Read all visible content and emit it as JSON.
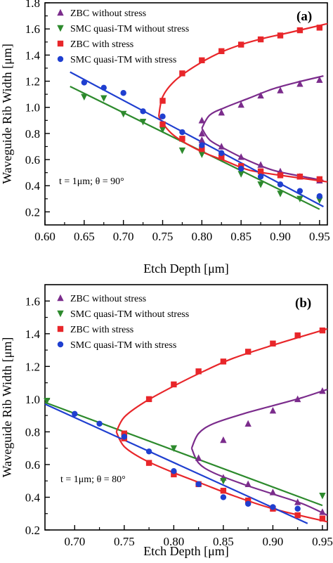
{
  "chart_data": [
    {
      "type": "scatter",
      "panel_label": "(a)",
      "annotation": "t = 1μm; θ = 90°",
      "xlabel": "Etch Depth [μm]",
      "ylabel": "Waveguide Rib Width [μm]",
      "xlim": [
        0.6,
        0.96
      ],
      "ylim": [
        0.1,
        1.8
      ],
      "xticks": [
        0.6,
        0.65,
        0.7,
        0.75,
        0.8,
        0.85,
        0.9,
        0.95
      ],
      "xtick_labels": [
        "0.60",
        "0.65",
        "0.70",
        "0.75",
        "0.80",
        "0.85",
        "0.90",
        "0.95"
      ],
      "yticks": [
        0.2,
        0.4,
        0.6,
        0.8,
        1.0,
        1.2,
        1.4,
        1.6,
        1.8
      ],
      "ytick_labels": [
        "0.2",
        "0.4",
        "0.6",
        "0.8",
        "1.0",
        "1.2",
        "1.4",
        "1.6",
        "1.8"
      ],
      "legend_position": "top-left",
      "series": [
        {
          "name": "ZBC without stress",
          "color": "#7b2c8c",
          "marker": "triangle-up",
          "points": [
            [
              0.8,
              0.9
            ],
            [
              0.8,
              0.8
            ],
            [
              0.825,
              0.96
            ],
            [
              0.85,
              1.02
            ],
            [
              0.875,
              1.09
            ],
            [
              0.9,
              1.13
            ],
            [
              0.925,
              1.18
            ],
            [
              0.95,
              1.21
            ],
            [
              0.8,
              0.75
            ],
            [
              0.825,
              0.7
            ],
            [
              0.85,
              0.62
            ],
            [
              0.875,
              0.56
            ],
            [
              0.9,
              0.51
            ],
            [
              0.925,
              0.47
            ],
            [
              0.95,
              0.44
            ]
          ],
          "curves": [
            [
              [
                0.8,
                0.84
              ],
              [
                0.81,
                0.94
              ],
              [
                0.83,
                1.0
              ],
              [
                0.86,
                1.07
              ],
              [
                0.89,
                1.14
              ],
              [
                0.92,
                1.19
              ],
              [
                0.955,
                1.24
              ]
            ],
            [
              [
                0.8,
                0.84
              ],
              [
                0.81,
                0.75
              ],
              [
                0.83,
                0.68
              ],
              [
                0.86,
                0.59
              ],
              [
                0.89,
                0.52
              ],
              [
                0.92,
                0.48
              ],
              [
                0.955,
                0.44
              ]
            ]
          ]
        },
        {
          "name": "SMC quasi-TM without stress",
          "color": "#2d8a2d",
          "marker": "triangle-down",
          "points": [
            [
              0.65,
              1.08
            ],
            [
              0.675,
              1.07
            ],
            [
              0.7,
              0.95
            ],
            [
              0.725,
              0.89
            ],
            [
              0.75,
              0.83
            ],
            [
              0.775,
              0.67
            ],
            [
              0.8,
              0.64
            ],
            [
              0.825,
              0.61
            ],
            [
              0.85,
              0.49
            ],
            [
              0.875,
              0.41
            ],
            [
              0.9,
              0.34
            ],
            [
              0.925,
              0.3
            ],
            [
              0.95,
              0.29
            ]
          ],
          "curves": [
            [
              [
                0.632,
                1.16
              ],
              [
                0.95,
                0.22
              ]
            ]
          ]
        },
        {
          "name": "ZBC with stress",
          "color": "#e8262a",
          "marker": "square",
          "points": [
            [
              0.75,
              0.87
            ],
            [
              0.75,
              1.05
            ],
            [
              0.775,
              1.26
            ],
            [
              0.8,
              1.36
            ],
            [
              0.825,
              1.43
            ],
            [
              0.85,
              1.48
            ],
            [
              0.875,
              1.52
            ],
            [
              0.9,
              1.55
            ],
            [
              0.925,
              1.59
            ],
            [
              0.95,
              1.61
            ],
            [
              0.775,
              0.76
            ],
            [
              0.8,
              0.68
            ],
            [
              0.825,
              0.62
            ],
            [
              0.85,
              0.55
            ],
            [
              0.875,
              0.51
            ],
            [
              0.9,
              0.48
            ],
            [
              0.925,
              0.47
            ],
            [
              0.95,
              0.45
            ]
          ],
          "curves": [
            [
              [
                0.745,
                0.93
              ],
              [
                0.75,
                1.08
              ],
              [
                0.765,
                1.2
              ],
              [
                0.79,
                1.31
              ],
              [
                0.82,
                1.41
              ],
              [
                0.85,
                1.48
              ],
              [
                0.88,
                1.53
              ],
              [
                0.91,
                1.57
              ],
              [
                0.96,
                1.64
              ]
            ],
            [
              [
                0.745,
                0.93
              ],
              [
                0.755,
                0.84
              ],
              [
                0.77,
                0.76
              ],
              [
                0.8,
                0.66
              ],
              [
                0.83,
                0.59
              ],
              [
                0.86,
                0.52
              ],
              [
                0.9,
                0.48
              ],
              [
                0.96,
                0.43
              ]
            ]
          ]
        },
        {
          "name": "SMC quasi-TM with stress",
          "color": "#1f3fd0",
          "marker": "circle",
          "points": [
            [
              0.65,
              1.19
            ],
            [
              0.675,
              1.15
            ],
            [
              0.7,
              1.11
            ],
            [
              0.725,
              0.97
            ],
            [
              0.75,
              0.93
            ],
            [
              0.775,
              0.81
            ],
            [
              0.8,
              0.71
            ],
            [
              0.825,
              0.65
            ],
            [
              0.85,
              0.53
            ],
            [
              0.875,
              0.47
            ],
            [
              0.9,
              0.41
            ],
            [
              0.925,
              0.36
            ],
            [
              0.95,
              0.32
            ]
          ],
          "curves": [
            [
              [
                0.632,
                1.27
              ],
              [
                0.955,
                0.24
              ]
            ]
          ]
        }
      ]
    },
    {
      "type": "scatter",
      "panel_label": "(b)",
      "annotation": "t = 1μm; θ = 80°",
      "xlabel": "Etch Depth [μm]",
      "ylabel": "Waveguide Rib Width [μm]",
      "xlim": [
        0.67,
        0.955
      ],
      "ylim": [
        0.2,
        1.7
      ],
      "xticks": [
        0.7,
        0.75,
        0.8,
        0.85,
        0.9,
        0.95
      ],
      "xtick_labels": [
        "0.70",
        "0.75",
        "0.80",
        "0.85",
        "0.90",
        "0.95"
      ],
      "yticks": [
        0.2,
        0.4,
        0.6,
        0.8,
        1.0,
        1.2,
        1.4,
        1.6
      ],
      "ytick_labels": [
        "0.2",
        "0.4",
        "0.6",
        "0.8",
        "1.0",
        "1.2",
        "1.4",
        "1.6"
      ],
      "legend_position": "top-left",
      "series": [
        {
          "name": "ZBC without stress",
          "color": "#7b2c8c",
          "marker": "triangle-up",
          "points": [
            [
              0.825,
              0.64
            ],
            [
              0.85,
              0.75
            ],
            [
              0.875,
              0.85
            ],
            [
              0.9,
              0.93
            ],
            [
              0.925,
              1.0
            ],
            [
              0.95,
              1.05
            ],
            [
              0.85,
              0.52
            ],
            [
              0.875,
              0.48
            ],
            [
              0.9,
              0.43
            ],
            [
              0.925,
              0.37
            ],
            [
              0.95,
              0.31
            ]
          ],
          "curves": [
            [
              [
                0.818,
                0.7
              ],
              [
                0.825,
                0.79
              ],
              [
                0.84,
                0.85
              ],
              [
                0.87,
                0.91
              ],
              [
                0.9,
                0.96
              ],
              [
                0.93,
                1.01
              ],
              [
                0.955,
                1.06
              ]
            ],
            [
              [
                0.818,
                0.7
              ],
              [
                0.825,
                0.61
              ],
              [
                0.84,
                0.55
              ],
              [
                0.87,
                0.48
              ],
              [
                0.9,
                0.42
              ],
              [
                0.93,
                0.36
              ],
              [
                0.955,
                0.29
              ]
            ]
          ]
        },
        {
          "name": "SMC quasi-TM without stress",
          "color": "#2d8a2d",
          "marker": "triangle-down",
          "points": [
            [
              0.672,
              0.99
            ],
            [
              0.75,
              0.77
            ],
            [
              0.8,
              0.7
            ],
            [
              0.85,
              0.5
            ],
            [
              0.95,
              0.41
            ]
          ],
          "curves": [
            [
              [
                0.67,
                0.98
              ],
              [
                0.95,
                0.35
              ]
            ]
          ]
        },
        {
          "name": "ZBC with stress",
          "color": "#e8262a",
          "marker": "square",
          "points": [
            [
              0.75,
              0.76
            ],
            [
              0.75,
              0.79
            ],
            [
              0.775,
              1.0
            ],
            [
              0.8,
              1.09
            ],
            [
              0.825,
              1.17
            ],
            [
              0.85,
              1.23
            ],
            [
              0.875,
              1.29
            ],
            [
              0.9,
              1.34
            ],
            [
              0.925,
              1.39
            ],
            [
              0.95,
              1.42
            ],
            [
              0.775,
              0.61
            ],
            [
              0.8,
              0.54
            ],
            [
              0.825,
              0.48
            ],
            [
              0.85,
              0.44
            ],
            [
              0.875,
              0.38
            ],
            [
              0.9,
              0.33
            ],
            [
              0.925,
              0.29
            ],
            [
              0.95,
              0.27
            ]
          ],
          "curves": [
            [
              [
                0.742,
                0.8
              ],
              [
                0.75,
                0.89
              ],
              [
                0.77,
                0.98
              ],
              [
                0.8,
                1.08
              ],
              [
                0.83,
                1.17
              ],
              [
                0.86,
                1.25
              ],
              [
                0.9,
                1.33
              ],
              [
                0.955,
                1.43
              ]
            ],
            [
              [
                0.742,
                0.8
              ],
              [
                0.75,
                0.71
              ],
              [
                0.77,
                0.63
              ],
              [
                0.8,
                0.55
              ],
              [
                0.83,
                0.48
              ],
              [
                0.86,
                0.41
              ],
              [
                0.9,
                0.33
              ],
              [
                0.955,
                0.25
              ]
            ]
          ]
        },
        {
          "name": "SMC quasi-TM with stress",
          "color": "#1f3fd0",
          "marker": "circle",
          "points": [
            [
              0.7,
              0.91
            ],
            [
              0.725,
              0.85
            ],
            [
              0.75,
              0.77
            ],
            [
              0.775,
              0.68
            ],
            [
              0.8,
              0.56
            ],
            [
              0.825,
              0.48
            ],
            [
              0.85,
              0.4
            ],
            [
              0.875,
              0.36
            ],
            [
              0.9,
              0.34
            ],
            [
              0.925,
              0.33
            ]
          ],
          "curves": [
            [
              [
                0.67,
                0.97
              ],
              [
                0.935,
                0.24
              ]
            ]
          ]
        }
      ]
    }
  ]
}
